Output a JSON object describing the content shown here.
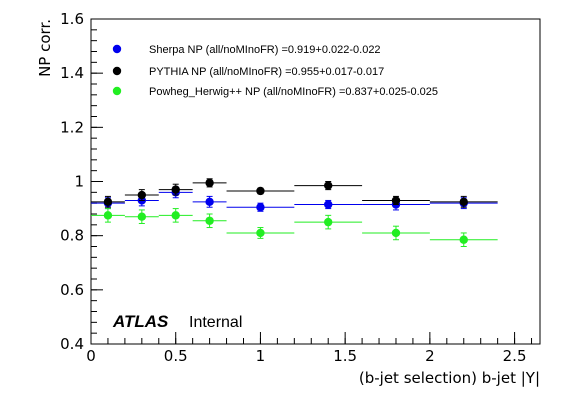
{
  "chart_data": {
    "type": "scatter",
    "xlabel": "(b-jet selection) b-jet |Y|",
    "ylabel": "NP corr.",
    "xlim": [
      0,
      2.65
    ],
    "ylim": [
      0.4,
      1.6
    ],
    "x_ticks": [
      0,
      0.5,
      1,
      1.5,
      2,
      2.5
    ],
    "y_ticks": [
      0.4,
      0.6,
      0.8,
      1,
      1.2,
      1.4,
      1.6
    ],
    "x_tick_labels": [
      "0",
      "0.5",
      "1",
      "1.5",
      "2",
      "2.5"
    ],
    "y_tick_labels": [
      "0.4",
      "0.6",
      "0.8",
      "1",
      "1.2",
      "1.4",
      "1.6"
    ],
    "grid": false,
    "legend_placement": "top-left",
    "annotation": {
      "atlas": "ATLAS",
      "status": "Internal"
    },
    "series": [
      {
        "name": "Sherpa NP (all/noMInoFR) =0.919+0.022-0.022",
        "color": "#0000ee",
        "x": [
          0.1,
          0.3,
          0.5,
          0.7,
          1.0,
          1.4,
          1.8,
          2.2
        ],
        "xerr": [
          0.1,
          0.1,
          0.1,
          0.1,
          0.2,
          0.2,
          0.2,
          0.2
        ],
        "y": [
          0.92,
          0.93,
          0.96,
          0.925,
          0.905,
          0.915,
          0.915,
          0.92
        ],
        "yerr": [
          0.02,
          0.02,
          0.02,
          0.02,
          0.015,
          0.015,
          0.02,
          0.02
        ]
      },
      {
        "name": "PYTHIA NP (all/noMInoFR) =0.955+0.017-0.017",
        "color": "#000000",
        "x": [
          0.1,
          0.3,
          0.5,
          0.7,
          1.0,
          1.4,
          1.8,
          2.2
        ],
        "xerr": [
          0.1,
          0.1,
          0.1,
          0.1,
          0.2,
          0.2,
          0.2,
          0.2
        ],
        "y": [
          0.925,
          0.95,
          0.97,
          0.995,
          0.965,
          0.985,
          0.93,
          0.925
        ],
        "yerr": [
          0.02,
          0.02,
          0.02,
          0.015,
          0.01,
          0.015,
          0.015,
          0.02
        ]
      },
      {
        "name": "Powheg_Herwig++ NP (all/noMInoFR) =0.837+0.025-0.025",
        "color": "#22ee22",
        "x": [
          0.1,
          0.3,
          0.5,
          0.7,
          1.0,
          1.4,
          1.8,
          2.2
        ],
        "xerr": [
          0.1,
          0.1,
          0.1,
          0.1,
          0.2,
          0.2,
          0.2,
          0.2
        ],
        "y": [
          0.875,
          0.87,
          0.875,
          0.855,
          0.81,
          0.85,
          0.81,
          0.785
        ],
        "yerr": [
          0.025,
          0.025,
          0.025,
          0.025,
          0.02,
          0.025,
          0.025,
          0.025
        ]
      }
    ]
  }
}
